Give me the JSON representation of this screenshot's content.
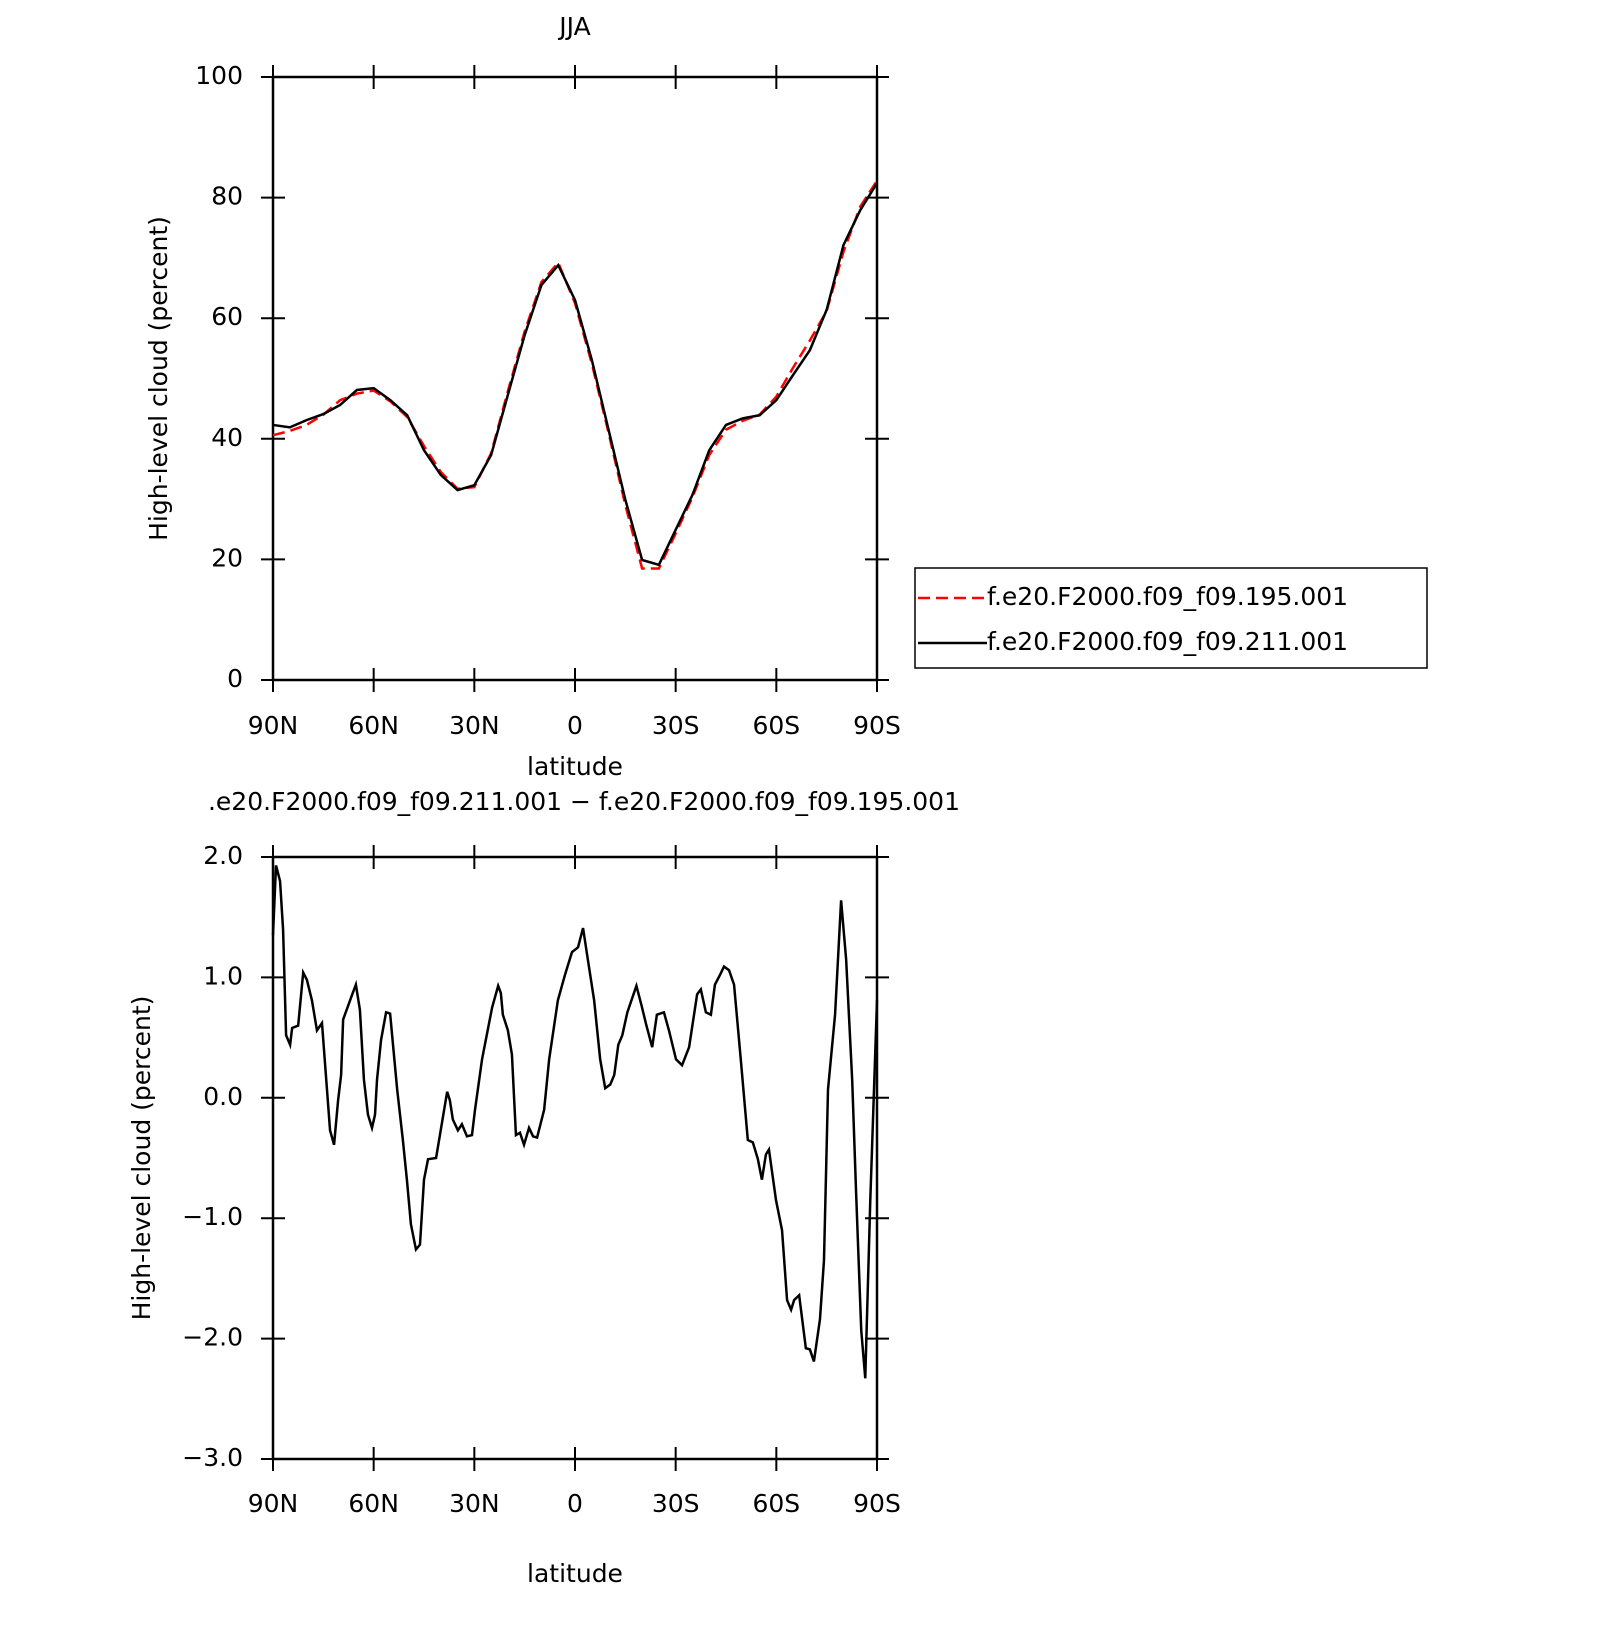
{
  "chart_data": [
    {
      "type": "line",
      "title": "JJA",
      "x_label": "latitude",
      "y_label": "High-level cloud (percent)",
      "x": [
        90,
        85,
        80,
        75,
        70,
        65,
        60,
        55,
        50,
        45,
        40,
        35,
        30,
        25,
        20,
        15,
        10,
        5,
        0,
        -5,
        -10,
        -15,
        -20,
        -25,
        -30,
        -35,
        -40,
        -45,
        -50,
        -55,
        -60,
        -65,
        -70,
        -75,
        -80,
        -85,
        -90
      ],
      "series": [
        {
          "name": "f.e20.F2000.f09_f09.195.001",
          "color": "#ff0000",
          "line_style": "dashed",
          "values": [
            40.6,
            41.3,
            42.3,
            44.0,
            46.4,
            47.5,
            48.0,
            46.2,
            43.6,
            38.8,
            34.5,
            31.7,
            32.0,
            37.6,
            47.9,
            57.8,
            66.0,
            69.2,
            62.5,
            52.5,
            41.0,
            29.0,
            18.5,
            18.5,
            24.3,
            30.3,
            37.3,
            41.5,
            43.0,
            44.0,
            47.0,
            51.8,
            56.3,
            61.2,
            71.0,
            78.5,
            82.8
          ]
        },
        {
          "name": "f.e20.F2000.f09_f09.211.001",
          "color": "#000000",
          "line_style": "solid",
          "values": [
            42.3,
            41.9,
            43.1,
            44.1,
            45.6,
            48.1,
            48.4,
            46.4,
            43.9,
            38.1,
            34.0,
            31.5,
            32.3,
            37.3,
            47.3,
            57.2,
            65.5,
            68.8,
            63.0,
            53.1,
            41.5,
            29.9,
            19.9,
            19.1,
            24.9,
            30.7,
            38.1,
            42.3,
            43.4,
            43.9,
            46.4,
            50.6,
            54.7,
            61.4,
            72.1,
            77.9,
            82.4
          ]
        }
      ],
      "xlim": [
        90,
        -90
      ],
      "ylim": [
        0,
        100
      ],
      "xticks": [
        {
          "value": 90,
          "label": "90N"
        },
        {
          "value": 60,
          "label": "60N"
        },
        {
          "value": 30,
          "label": "30N"
        },
        0,
        {
          "value": -30,
          "label": "30S"
        },
        {
          "value": -60,
          "label": "60S"
        },
        {
          "value": -90,
          "label": "90S"
        }
      ],
      "yticks": [
        0,
        20,
        40,
        60,
        80,
        100
      ],
      "legend": "right"
    },
    {
      "type": "line",
      "title": ".e20.F2000.f09_f09.211.001 − f.e20.F2000.f09_f09.195.001",
      "x_label": "latitude",
      "y_label": "High-level cloud (percent)",
      "x": [
        90,
        89.1,
        87.9,
        87.0,
        86.1,
        84.9,
        84.3,
        82.5,
        81.0,
        79.9,
        78.4,
        76.9,
        75.4,
        73.0,
        71.8,
        70.6,
        69.7,
        69.1,
        66.5,
        65.3,
        64.1,
        62.9,
        61.7,
        60.5,
        59.6,
        59.0,
        57.8,
        56.3,
        55.1,
        53.0,
        51.3,
        50.1,
        48.9,
        47.4,
        46.2,
        45.0,
        43.8,
        41.4,
        39.9,
        38.1,
        37.3,
        36.4,
        34.9,
        33.7,
        32.2,
        30.7,
        29.8,
        27.7,
        24.7,
        22.9,
        22.1,
        21.5,
        20.0,
        18.8,
        17.6,
        16.4,
        15.2,
        13.7,
        12.5,
        11.3,
        9.2,
        7.7,
        5.1,
        3.0,
        0.9,
        -0.9,
        -2.4,
        -3.6,
        -5.7,
        -7.5,
        -9.0,
        -10.5,
        -11.7,
        -12.9,
        -14.1,
        -15.6,
        -18.3,
        -19.8,
        -21.2,
        -23.0,
        -24.4,
        -26.5,
        -28.0,
        -30.1,
        -31.9,
        -34.0,
        -36.4,
        -37.5,
        -39.0,
        -40.5,
        -41.7,
        -43.2,
        -44.4,
        -45.9,
        -47.4,
        -49.4,
        -51.5,
        -53.0,
        -54.5,
        -55.7,
        -56.9,
        -57.8,
        -59.9,
        -61.7,
        -63.2,
        -64.4,
        -65.3,
        -66.8,
        -68.8,
        -70.0,
        -71.2,
        -73.0,
        -74.2,
        -75.4,
        -77.5,
        -79.3,
        -80.8,
        -82.6,
        -83.8,
        -85.3,
        -86.5,
        -88.0,
        -90
      ],
      "series": [
        {
          "color": "#000000",
          "line_style": "solid",
          "values": [
            1.35,
            1.93,
            1.8,
            1.4,
            0.52,
            0.44,
            0.58,
            0.6,
            1.04,
            0.98,
            0.81,
            0.56,
            0.62,
            -0.27,
            -0.39,
            -0.02,
            0.19,
            0.65,
            0.85,
            0.94,
            0.73,
            0.15,
            -0.14,
            -0.25,
            -0.14,
            0.15,
            0.48,
            0.71,
            0.7,
            0.07,
            -0.35,
            -0.68,
            -1.05,
            -1.26,
            -1.22,
            -0.68,
            -0.51,
            -0.5,
            -0.25,
            0.05,
            -0.02,
            -0.18,
            -0.27,
            -0.22,
            -0.32,
            -0.31,
            -0.1,
            0.32,
            0.75,
            0.93,
            0.87,
            0.69,
            0.56,
            0.36,
            -0.31,
            -0.29,
            -0.39,
            -0.25,
            -0.32,
            -0.33,
            -0.1,
            0.32,
            0.81,
            1.02,
            1.21,
            1.25,
            1.41,
            1.19,
            0.81,
            0.32,
            0.08,
            0.11,
            0.19,
            0.44,
            0.52,
            0.71,
            0.93,
            0.77,
            0.61,
            0.42,
            0.69,
            0.71,
            0.56,
            0.32,
            0.27,
            0.42,
            0.86,
            0.9,
            0.71,
            0.69,
            0.94,
            1.02,
            1.09,
            1.06,
            0.94,
            0.32,
            -0.35,
            -0.37,
            -0.51,
            -0.68,
            -0.47,
            -0.43,
            -0.85,
            -1.1,
            -1.68,
            -1.76,
            -1.68,
            -1.64,
            -2.08,
            -2.09,
            -2.19,
            -1.84,
            -1.35,
            0.07,
            0.69,
            1.64,
            1.15,
            0.15,
            -0.81,
            -1.93,
            -2.33,
            -0.85,
            0.81
          ]
        }
      ],
      "xlim": [
        90,
        -90
      ],
      "ylim": [
        -3,
        2
      ],
      "xticks": [
        {
          "value": 90,
          "label": "90N"
        },
        {
          "value": 60,
          "label": "60N"
        },
        {
          "value": 30,
          "label": "30N"
        },
        0,
        {
          "value": -30,
          "label": "30S"
        },
        {
          "value": -60,
          "label": "60S"
        },
        {
          "value": -90,
          "label": "90S"
        }
      ],
      "yticks": [
        {
          "value": -3,
          "label": "−3.0"
        },
        {
          "value": -2,
          "label": "−2.0"
        },
        {
          "value": -1,
          "label": "−1.0"
        },
        {
          "value": 0,
          "label": "0.0"
        },
        {
          "value": 1,
          "label": "1.0"
        },
        {
          "value": 2,
          "label": "2.0"
        }
      ]
    }
  ]
}
